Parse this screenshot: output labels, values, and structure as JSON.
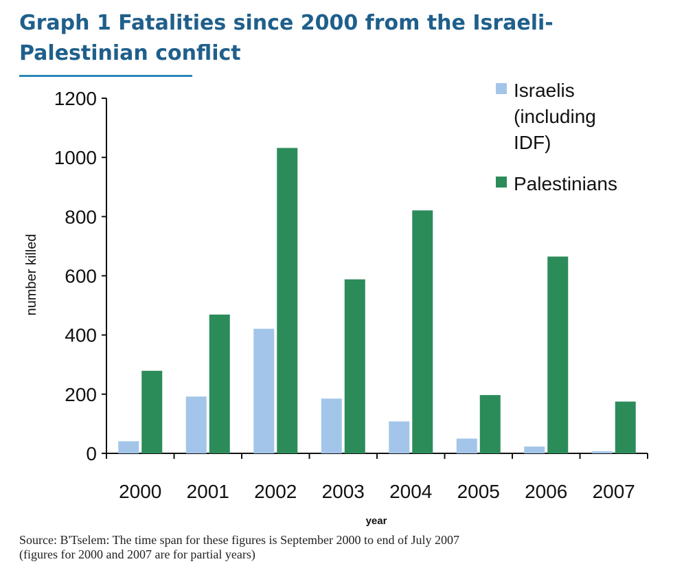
{
  "title_line1": "Graph 1 Fatalities since 2000 from the Israeli-",
  "title_line2": "Palestinian conflict",
  "source_line1": "Source: B'Tselem: The time span for these figures is September 2000 to end of July 2007",
  "source_line2": "(figures for 2000 and 2007 are for partial years)",
  "colors": {
    "title": "#1f5f8b",
    "israelis": "#a3c5e9",
    "palestinians": "#2b8c5a"
  },
  "chart_data": {
    "type": "bar",
    "xlabel": "year",
    "ylabel": "number killed",
    "ylim": [
      0,
      1200
    ],
    "yticks": [
      "0",
      "200",
      "400",
      "600",
      "800",
      "1000",
      "1200"
    ],
    "categories": [
      "2000",
      "2001",
      "2002",
      "2003",
      "2004",
      "2005",
      "2006",
      "2007"
    ],
    "series": [
      {
        "name": "Israelis (including IDF)",
        "legend_lines": [
          "Israelis",
          "(including",
          "IDF)"
        ],
        "values": [
          41,
          192,
          421,
          185,
          108,
          50,
          23,
          7
        ]
      },
      {
        "name": "Palestinians",
        "legend_lines": [
          "Palestinians"
        ],
        "values": [
          279,
          469,
          1032,
          588,
          821,
          197,
          665,
          175
        ]
      }
    ],
    "legend_position": "top-right",
    "grid": false
  }
}
